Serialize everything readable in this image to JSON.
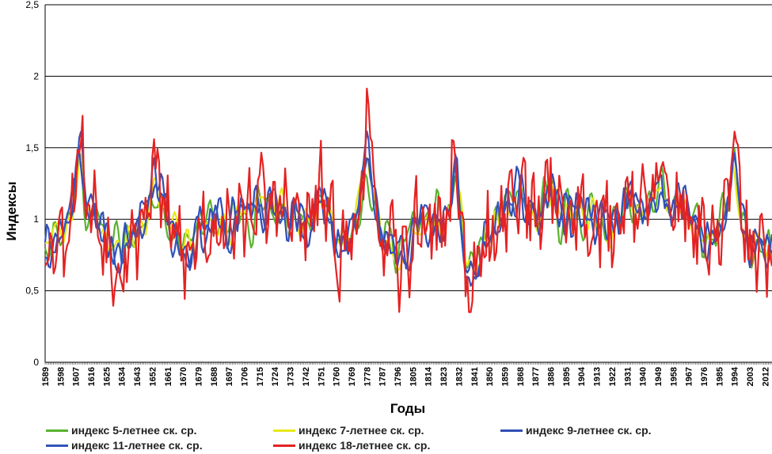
{
  "chart_data": {
    "type": "line",
    "ylabel": "Индексы",
    "xlabel": "Годы",
    "ylim": [
      0,
      2.5
    ],
    "y_ticks": [
      "0",
      "0,5",
      "1",
      "1,5",
      "2",
      "2,5"
    ],
    "y_tick_values": [
      0,
      0.5,
      1,
      1.5,
      2,
      2.5
    ],
    "grid": true,
    "x_range": [
      1589,
      2016
    ],
    "x_ticks": [
      1589,
      1598,
      1607,
      1616,
      1625,
      1634,
      1643,
      1652,
      1661,
      1670,
      1679,
      1688,
      1697,
      1706,
      1715,
      1724,
      1733,
      1742,
      1751,
      1760,
      1769,
      1778,
      1787,
      1796,
      1805,
      1814,
      1823,
      1832,
      1841,
      1850,
      1859,
      1868,
      1877,
      1886,
      1895,
      1904,
      1913,
      1922,
      1931,
      1940,
      1949,
      1958,
      1967,
      1976,
      1985,
      1994,
      2003,
      2012
    ],
    "legend_position": "bottom",
    "key_points": {
      "x": [
        1589,
        1595,
        1600,
        1605,
        1609,
        1613,
        1618,
        1625,
        1632,
        1637,
        1642,
        1648,
        1654,
        1658,
        1663,
        1668,
        1674,
        1680,
        1685,
        1690,
        1696,
        1702,
        1708,
        1714,
        1720,
        1726,
        1732,
        1738,
        1744,
        1750,
        1756,
        1762,
        1767,
        1772,
        1778,
        1783,
        1788,
        1793,
        1797,
        1802,
        1808,
        1813,
        1818,
        1823,
        1827,
        1830,
        1833,
        1836,
        1840,
        1845,
        1850,
        1856,
        1862,
        1868,
        1874,
        1880,
        1886,
        1891,
        1896,
        1902,
        1908,
        1914,
        1920,
        1926,
        1932,
        1938,
        1944,
        1950,
        1956,
        1962,
        1968,
        1974,
        1980,
        1986,
        1991,
        1994,
        1998,
        2002,
        2006,
        2010,
        2016
      ],
      "base": [
        0.8,
        0.9,
        0.92,
        1.05,
        1.58,
        1.1,
        1.05,
        0.85,
        0.72,
        0.85,
        0.9,
        1.05,
        1.35,
        1.1,
        0.9,
        0.88,
        0.72,
        1.0,
        0.92,
        1.0,
        0.92,
        1.0,
        1.05,
        1.15,
        1.05,
        1.12,
        1.0,
        1.02,
        0.92,
        1.2,
        1.0,
        0.8,
        0.85,
        1.0,
        1.55,
        1.1,
        0.8,
        0.85,
        0.7,
        0.8,
        1.0,
        0.95,
        1.0,
        0.95,
        1.05,
        1.55,
        1.0,
        0.65,
        0.55,
        0.75,
        0.9,
        1.0,
        1.1,
        1.2,
        1.05,
        1.0,
        1.3,
        1.05,
        1.0,
        1.08,
        1.0,
        1.02,
        0.95,
        1.0,
        1.2,
        1.05,
        1.1,
        1.25,
        1.05,
        1.1,
        1.0,
        0.9,
        0.82,
        0.95,
        1.2,
        1.45,
        1.0,
        0.85,
        0.8,
        0.85,
        0.7
      ]
    },
    "series": [
      {
        "name": "индекс 5-летнее  ск. ср.",
        "color": "#5ab22e",
        "smooth": 2,
        "amp": 0.75,
        "noise": 0.22,
        "seed": 11
      },
      {
        "name": "индекс 7-летнее  ск. ср.",
        "color": "#e8e81a",
        "smooth": 2,
        "amp": 0.85,
        "noise": 0.18,
        "seed": 23
      },
      {
        "name": "индекс 9-летнее  ск. ср.",
        "color": "#2f4fb5",
        "smooth": 1,
        "amp": 1.0,
        "noise": 0.18,
        "seed": 37
      },
      {
        "name": "индекс 11-летнее ск. ср.",
        "color": "#3355bb",
        "smooth": 1,
        "amp": 1.05,
        "noise": 0.16,
        "seed": 41
      },
      {
        "name": "индекс 18-летнее  ск. ср.",
        "color": "#e52222",
        "smooth": 0,
        "amp": 1.2,
        "noise": 0.24,
        "seed": 53
      }
    ]
  }
}
